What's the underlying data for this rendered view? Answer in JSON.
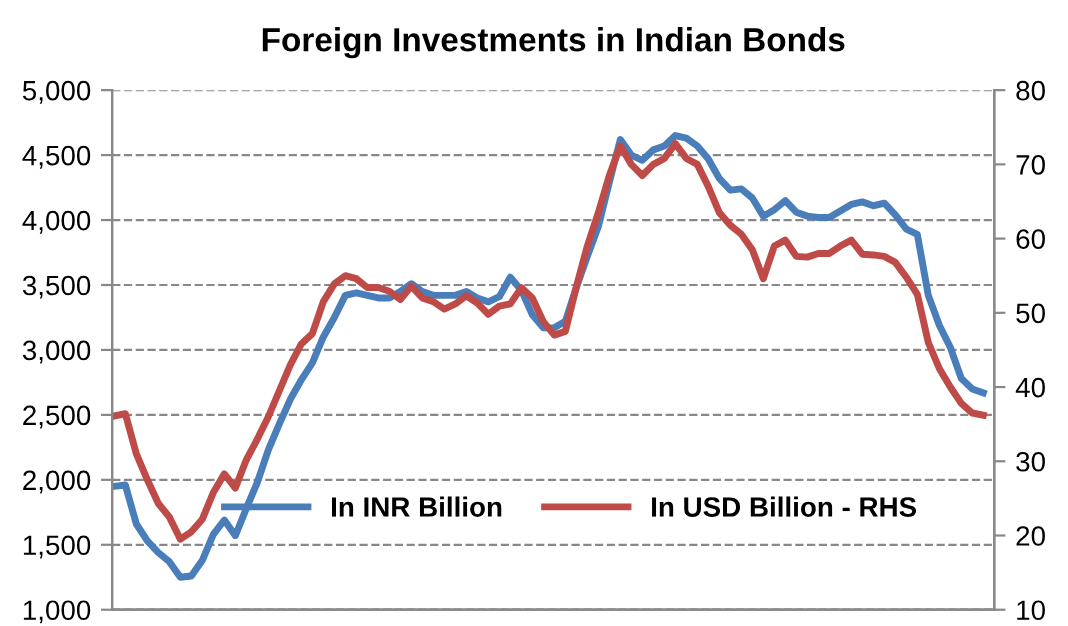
{
  "chart_data": {
    "type": "line",
    "title": "Foreign Investments in Indian Bonds",
    "categories": [
      null,
      null,
      null,
      null,
      null,
      null,
      null,
      null,
      null,
      null,
      null,
      null,
      null,
      null,
      null,
      null,
      null,
      null,
      null,
      null,
      null,
      null,
      null,
      null,
      null,
      null,
      null,
      null,
      null,
      null,
      null,
      null,
      null,
      null,
      null,
      null,
      null,
      null,
      null,
      null,
      null,
      null,
      null,
      null,
      null,
      null,
      null,
      null,
      null,
      null,
      null,
      null,
      null,
      null,
      null,
      null,
      null,
      null,
      null,
      null,
      null,
      null,
      null,
      null,
      null,
      null,
      null,
      null,
      null,
      null,
      null,
      null,
      null,
      null,
      null,
      null,
      null,
      null,
      null,
      null
    ],
    "series": [
      {
        "name": "In INR Billion",
        "color": "#4a7ebb",
        "values": [
          1950,
          1960,
          1660,
          1530,
          1440,
          1370,
          1250,
          1260,
          1380,
          1580,
          1690,
          1570,
          1780,
          1980,
          2230,
          2430,
          2620,
          2770,
          2900,
          3100,
          3250,
          3420,
          3440,
          3420,
          3400,
          3400,
          3450,
          3510,
          3450,
          3420,
          3420,
          3420,
          3450,
          3400,
          3370,
          3410,
          3560,
          3460,
          3270,
          3170,
          3170,
          3220,
          3480,
          3720,
          3950,
          4290,
          4620,
          4500,
          4460,
          4540,
          4570,
          4650,
          4630,
          4570,
          4470,
          4320,
          4230,
          4240,
          4170,
          4030,
          4080,
          4150,
          4060,
          4030,
          4020,
          4020,
          4070,
          4120,
          4140,
          4110,
          4130,
          4040,
          3930,
          3890,
          3420,
          3190,
          3020,
          2780,
          2700,
          2670
        ]
      },
      {
        "name": "In USD Billion - RHS",
        "color": "#be4b48",
        "axis": "y2",
        "values": [
          36.1,
          36.4,
          31.0,
          27.5,
          24.3,
          22.5,
          19.5,
          20.5,
          22.2,
          25.8,
          28.3,
          26.4,
          30.2,
          33.0,
          36.0,
          39.5,
          43.0,
          45.8,
          47.2,
          51.5,
          53.9,
          55.0,
          54.6,
          53.4,
          53.4,
          52.9,
          51.8,
          53.6,
          52.0,
          51.5,
          50.5,
          51.2,
          52.3,
          51.3,
          49.8,
          50.9,
          51.2,
          53.4,
          52.0,
          48.8,
          47.0,
          47.5,
          53.5,
          59.0,
          63.5,
          68.5,
          72.5,
          70.0,
          68.5,
          70.0,
          70.8,
          72.8,
          70.8,
          70.0,
          67.0,
          63.5,
          61.8,
          60.6,
          58.5,
          54.6,
          59.0,
          59.8,
          57.6,
          57.5,
          58.0,
          58.0,
          59.0,
          59.8,
          57.9,
          57.8,
          57.6,
          56.8,
          54.8,
          52.5,
          46.0,
          42.5,
          40.0,
          37.8,
          36.5,
          36.2
        ]
      }
    ],
    "ylim": [
      1000,
      5000
    ],
    "yticks": [
      {
        "value": 1000,
        "label": "1,000"
      },
      {
        "value": 1500,
        "label": "1,500"
      },
      {
        "value": 2000,
        "label": "2,000"
      },
      {
        "value": 2500,
        "label": "2,500"
      },
      {
        "value": 3000,
        "label": "3,000"
      },
      {
        "value": 3500,
        "label": "3,500"
      },
      {
        "value": 4000,
        "label": "4,000"
      },
      {
        "value": 4500,
        "label": "4,500"
      },
      {
        "value": 5000,
        "label": "5,000"
      }
    ],
    "y2lim": [
      10,
      80
    ],
    "y2ticks": [
      10,
      20,
      30,
      40,
      50,
      60,
      70,
      80
    ],
    "grid": "y",
    "legend": "bottom",
    "line_style": "solid",
    "marker": "none"
  }
}
